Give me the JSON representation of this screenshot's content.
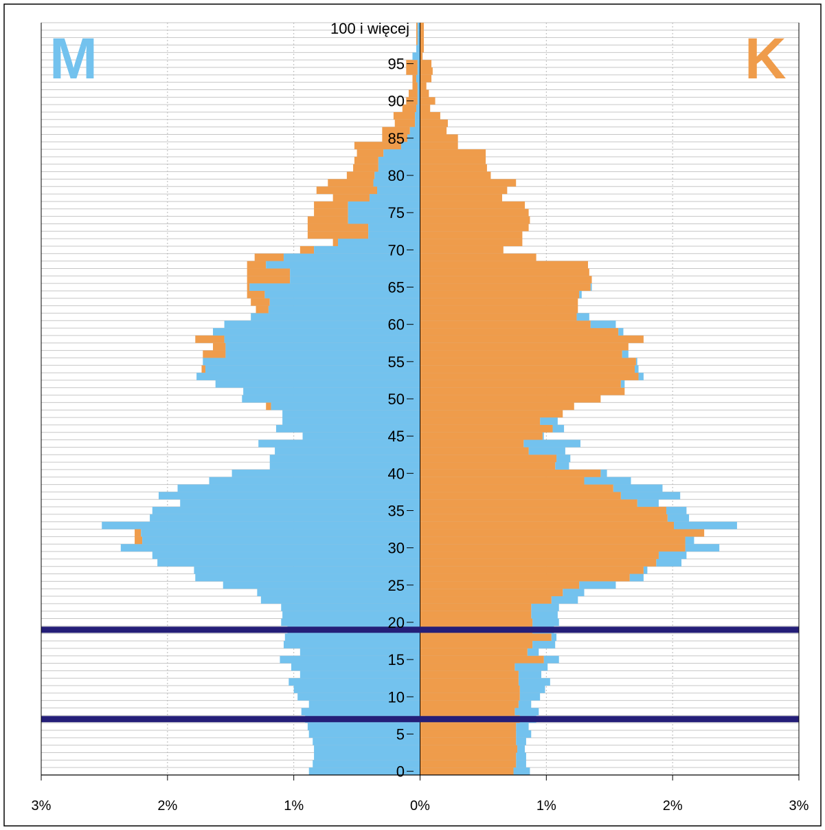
{
  "chart_data": {
    "type": "bar",
    "orientation": "horizontal",
    "subtype": "population-pyramid",
    "title": "",
    "xlabel": "",
    "ylabel": "",
    "left_label": "M",
    "right_label": "K",
    "colors": {
      "male": "#73c2ee",
      "female": "#ef9c4b",
      "highlight": "#241e78",
      "grid": "#b8b8b8",
      "frame": "#000000"
    },
    "xlim": [
      -3,
      3
    ],
    "x_tick_values": [
      -3,
      -2,
      -1,
      0,
      1,
      2,
      3
    ],
    "x_tick_labels": [
      "3%",
      "2%",
      "1%",
      "0%",
      "1%",
      "2%",
      "3%"
    ],
    "age_ticks": [
      0,
      5,
      10,
      15,
      20,
      25,
      30,
      35,
      40,
      45,
      50,
      55,
      60,
      65,
      70,
      75,
      80,
      85,
      90,
      95
    ],
    "age_tick_labels": [
      "0",
      "5",
      "10",
      "15",
      "20",
      "25",
      "30",
      "35",
      "40",
      "45",
      "50",
      "55",
      "60",
      "65",
      "70",
      "75",
      "80",
      "85",
      "90",
      "95"
    ],
    "top_category_label": "100 i więcej",
    "highlight_ages": [
      7.5,
      19.5
    ],
    "ages": [
      0,
      1,
      2,
      3,
      4,
      5,
      6,
      7,
      8,
      9,
      10,
      11,
      12,
      13,
      14,
      15,
      16,
      17,
      18,
      19,
      20,
      21,
      22,
      23,
      24,
      25,
      26,
      27,
      28,
      29,
      30,
      31,
      32,
      33,
      34,
      35,
      36,
      37,
      38,
      39,
      40,
      41,
      42,
      43,
      44,
      45,
      46,
      47,
      48,
      49,
      50,
      51,
      52,
      53,
      54,
      55,
      56,
      57,
      58,
      59,
      60,
      61,
      62,
      63,
      64,
      65,
      66,
      67,
      68,
      69,
      70,
      71,
      72,
      73,
      74,
      75,
      76,
      77,
      78,
      79,
      80,
      81,
      82,
      83,
      84,
      85,
      86,
      87,
      88,
      89,
      90,
      91,
      92,
      93,
      94,
      95,
      96,
      97,
      98,
      99,
      100
    ],
    "series": [
      {
        "name": "M",
        "values": [
          0.88,
          0.85,
          0.84,
          0.84,
          0.85,
          0.88,
          0.89,
          0.91,
          0.94,
          0.88,
          0.97,
          1.0,
          1.04,
          0.95,
          1.02,
          1.11,
          0.95,
          1.08,
          1.07,
          1.05,
          1.1,
          1.09,
          1.1,
          1.26,
          1.29,
          1.56,
          1.78,
          1.79,
          2.08,
          2.12,
          2.37,
          2.2,
          2.21,
          2.52,
          2.14,
          2.12,
          1.9,
          2.07,
          1.92,
          1.67,
          1.49,
          1.19,
          1.19,
          1.15,
          1.28,
          0.93,
          1.14,
          1.09,
          1.09,
          1.18,
          1.41,
          1.4,
          1.62,
          1.77,
          1.7,
          1.72,
          1.54,
          1.54,
          1.55,
          1.64,
          1.55,
          1.34,
          1.2,
          1.19,
          1.23,
          1.35,
          1.03,
          1.03,
          1.22,
          1.08,
          0.84,
          0.65,
          0.41,
          0.41,
          0.57,
          0.57,
          0.57,
          0.4,
          0.34,
          0.37,
          0.36,
          0.33,
          0.33,
          0.29,
          0.15,
          0.1,
          0.08,
          0.04,
          0.04,
          0.03,
          0.02,
          0.02,
          0.02,
          0.03,
          0.02,
          0.02,
          0.06,
          0.03,
          0.02,
          0.02,
          0.02
        ]
      },
      {
        "name": "K",
        "values": [
          0.74,
          0.76,
          0.76,
          0.77,
          0.76,
          0.76,
          0.76,
          0.79,
          0.75,
          0.78,
          0.79,
          0.79,
          0.78,
          0.78,
          0.75,
          0.98,
          0.85,
          0.89,
          1.04,
          0.89,
          0.89,
          0.88,
          0.88,
          1.04,
          1.13,
          1.26,
          1.66,
          1.77,
          1.87,
          1.89,
          2.1,
          2.1,
          2.25,
          2.01,
          1.96,
          1.95,
          1.72,
          1.59,
          1.53,
          1.3,
          1.43,
          1.07,
          1.08,
          0.86,
          0.82,
          0.97,
          1.05,
          0.95,
          1.13,
          1.22,
          1.43,
          1.62,
          1.59,
          1.73,
          1.7,
          1.71,
          1.6,
          1.65,
          1.77,
          1.57,
          1.35,
          1.24,
          1.25,
          1.25,
          1.26,
          1.35,
          1.36,
          1.34,
          1.33,
          0.92,
          0.66,
          0.81,
          0.81,
          0.86,
          0.87,
          0.86,
          0.83,
          0.65,
          0.69,
          0.76,
          0.56,
          0.53,
          0.52,
          0.52,
          0.3,
          0.3,
          0.21,
          0.22,
          0.16,
          0.08,
          0.12,
          0.07,
          0.05,
          0.09,
          0.1,
          0.09,
          0.02,
          0.03,
          0.03,
          0.03,
          0.03
        ]
      }
    ],
    "overlay_max_ages": [
      0,
      1,
      2,
      3,
      4,
      5,
      6,
      7,
      8,
      9,
      10,
      11,
      12,
      13,
      14,
      15,
      16,
      17,
      18,
      19,
      20,
      21,
      22,
      23,
      24,
      25,
      26,
      27,
      28,
      29,
      30,
      31,
      32,
      33,
      34,
      35,
      36,
      37,
      38,
      39,
      40,
      41,
      42,
      43,
      44,
      45,
      46,
      47,
      48,
      49,
      50,
      51,
      52,
      53,
      54,
      55,
      56,
      57,
      58,
      59,
      60,
      61,
      62,
      63,
      64,
      65,
      66,
      67,
      68,
      69,
      70,
      71,
      72,
      73,
      74,
      75,
      76,
      77,
      78,
      79,
      80,
      81,
      82,
      83,
      84,
      85,
      86,
      87,
      88,
      89,
      90,
      91,
      92,
      93,
      94,
      95,
      96,
      97,
      98,
      99,
      100
    ],
    "overlay_male": [
      0.88,
      0.85,
      0.84,
      0.84,
      0.85,
      0.88,
      0.89,
      0.91,
      0.94,
      0.88,
      0.97,
      1.0,
      1.04,
      0.95,
      1.02,
      1.11,
      0.95,
      1.08,
      1.07,
      1.05,
      1.1,
      1.09,
      1.1,
      1.26,
      1.29,
      1.56,
      1.78,
      1.79,
      2.08,
      2.12,
      2.37,
      2.26,
      2.26,
      2.52,
      2.14,
      2.12,
      1.9,
      2.07,
      1.92,
      1.67,
      1.49,
      1.19,
      1.19,
      1.15,
      1.28,
      0.93,
      1.14,
      1.09,
      1.09,
      1.22,
      1.41,
      1.4,
      1.62,
      1.77,
      1.73,
      1.72,
      1.72,
      1.64,
      1.78,
      1.64,
      1.55,
      1.34,
      1.3,
      1.34,
      1.37,
      1.37,
      1.37,
      1.37,
      1.37,
      1.31,
      0.95,
      0.69,
      0.89,
      0.89,
      0.89,
      0.84,
      0.84,
      0.69,
      0.82,
      0.73,
      0.58,
      0.53,
      0.52,
      0.5,
      0.52,
      0.3,
      0.3,
      0.2,
      0.21,
      0.14,
      0.11,
      0.09,
      0.06,
      0.06,
      0.11,
      0.11,
      0.06,
      0.03,
      0.03,
      0.03,
      0.03
    ],
    "overlay_female": [
      0.87,
      0.84,
      0.84,
      0.83,
      0.84,
      0.88,
      0.86,
      0.92,
      0.94,
      0.88,
      0.95,
      0.99,
      1.03,
      0.96,
      1.01,
      1.1,
      0.94,
      1.07,
      1.08,
      1.06,
      1.1,
      1.09,
      1.1,
      1.25,
      1.3,
      1.55,
      1.77,
      1.8,
      2.07,
      2.11,
      2.37,
      2.17,
      2.25,
      2.51,
      2.13,
      2.11,
      1.89,
      2.06,
      1.92,
      1.67,
      1.48,
      1.18,
      1.19,
      1.15,
      1.27,
      0.98,
      1.14,
      1.09,
      1.13,
      1.22,
      1.41,
      1.4,
      1.62,
      1.77,
      1.73,
      1.72,
      1.65,
      1.62,
      1.77,
      1.61,
      1.55,
      1.34,
      1.25,
      1.25,
      1.28,
      1.36,
      1.36,
      1.34,
      1.33,
      0.92,
      0.66,
      0.81,
      0.81,
      0.86,
      0.87,
      0.86,
      0.83,
      0.65,
      0.69,
      0.76,
      0.56,
      0.53,
      0.52,
      0.52,
      0.3,
      0.3,
      0.21,
      0.22,
      0.16,
      0.08,
      0.12,
      0.07,
      0.05,
      0.09,
      0.1,
      0.09,
      0.02,
      0.03,
      0.03,
      0.03,
      0.03
    ]
  }
}
